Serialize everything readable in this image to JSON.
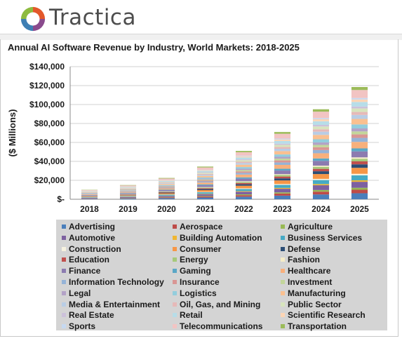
{
  "header": {
    "brand": "Tractica"
  },
  "chart_data": {
    "type": "bar",
    "stacked": true,
    "title": "Annual AI Software Revenue by Industry, World Markets: 2018-2025",
    "ylabel": "($ Millions)",
    "xlabel": "",
    "categories": [
      "2018",
      "2019",
      "2020",
      "2021",
      "2022",
      "2023",
      "2024",
      "2025"
    ],
    "totals": [
      10000,
      15000,
      22500,
      34500,
      51000,
      71000,
      95000,
      118500
    ],
    "ylim": [
      0,
      140000
    ],
    "yticks": [
      0,
      20000,
      40000,
      60000,
      80000,
      100000,
      120000,
      140000
    ],
    "ytick_labels": [
      "$-",
      "$20,000",
      "$40,000",
      "$60,000",
      "$80,000",
      "$100,000",
      "$120,000",
      "$140,000"
    ],
    "grid": true,
    "legend_position": "bottom",
    "series": [
      {
        "name": "Advertising",
        "color": "#4a7ebb",
        "share": 0.06
      },
      {
        "name": "Aerospace",
        "color": "#be4b48",
        "share": 0.035
      },
      {
        "name": "Agriculture",
        "color": "#98b954",
        "share": 0.02
      },
      {
        "name": "Automotive",
        "color": "#7d60a0",
        "share": 0.06
      },
      {
        "name": "Building Automation",
        "color": "#f0b632",
        "share": 0.015
      },
      {
        "name": "Business Services",
        "color": "#46aac5",
        "share": 0.05
      },
      {
        "name": "Construction",
        "color": "#f7f2df",
        "share": 0.015
      },
      {
        "name": "Consumer",
        "color": "#f79646",
        "share": 0.06
      },
      {
        "name": "Defense",
        "color": "#2c4d75",
        "share": 0.035
      },
      {
        "name": "Education",
        "color": "#c0504d",
        "share": 0.03
      },
      {
        "name": "Energy",
        "color": "#a6c97a",
        "share": 0.025
      },
      {
        "name": "Fashion",
        "color": "#f5ecc7",
        "share": 0.015
      },
      {
        "name": "Finance",
        "color": "#8c7bb0",
        "share": 0.06
      },
      {
        "name": "Gaming",
        "color": "#5aa7c6",
        "share": 0.03
      },
      {
        "name": "Healthcare",
        "color": "#f8b07c",
        "share": 0.065
      },
      {
        "name": "Information Technology",
        "color": "#95b3d7",
        "share": 0.04
      },
      {
        "name": "Insurance",
        "color": "#d99694",
        "share": 0.035
      },
      {
        "name": "Investment",
        "color": "#c3d69b",
        "share": 0.03
      },
      {
        "name": "Legal",
        "color": "#b3a2c7",
        "share": 0.03
      },
      {
        "name": "Logistics",
        "color": "#93cddd",
        "share": 0.04
      },
      {
        "name": "Manufacturing",
        "color": "#fac090",
        "share": 0.055
      },
      {
        "name": "Media & Entertainment",
        "color": "#b9cde5",
        "share": 0.04
      },
      {
        "name": "Oil, Gas, and Mining",
        "color": "#e6b9b8",
        "share": 0.03
      },
      {
        "name": "Public Sector",
        "color": "#d7e4bd",
        "share": 0.035
      },
      {
        "name": "Real Estate",
        "color": "#ccc1da",
        "share": 0.02
      },
      {
        "name": "Retail",
        "color": "#b7dde8",
        "share": 0.045
      },
      {
        "name": "Scientific Research",
        "color": "#fcd5b5",
        "share": 0.025
      },
      {
        "name": "Sports",
        "color": "#c6d9f1",
        "share": 0.015
      },
      {
        "name": "Telecommunications",
        "color": "#f2c4c3",
        "share": 0.08
      },
      {
        "name": "Transportation",
        "color": "#9bbb59",
        "share": 0.03
      }
    ]
  }
}
